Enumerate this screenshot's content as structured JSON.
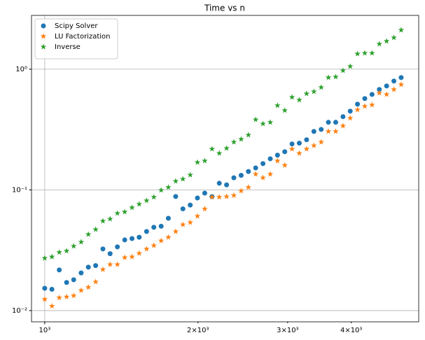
{
  "chart_data": {
    "type": "scatter",
    "title": "Time vs n",
    "log_x": true,
    "log_y": true,
    "grid": true,
    "legend": "upper left",
    "xlim": [
      942,
      5426
    ],
    "ylim": [
      0.00807,
      2.79
    ],
    "xticks": [
      {
        "value": 1000,
        "label": "10³"
      }
    ],
    "xminorticks": [
      {
        "value": 2000,
        "label": "2×10³"
      },
      {
        "value": 3000,
        "label": "3×10³"
      },
      {
        "value": 4000,
        "label": "4×10³"
      }
    ],
    "yticks": [
      {
        "value": 0.01,
        "label": "10⁻²"
      },
      {
        "value": 0.1,
        "label": "10⁻¹"
      },
      {
        "value": 1,
        "label": "10⁰"
      }
    ],
    "x": [
      1000,
      1033,
      1068,
      1104,
      1140,
      1179,
      1218,
      1259,
      1301,
      1344,
      1389,
      1436,
      1484,
      1533,
      1585,
      1638,
      1693,
      1749,
      1808,
      1868,
      1931,
      1995,
      2062,
      2131,
      2202,
      2276,
      2352,
      2431,
      2512,
      2596,
      2683,
      2773,
      2865,
      2961,
      3060,
      3162,
      3268,
      3378,
      3491,
      3607,
      3728,
      3853,
      3981,
      4114,
      4252,
      4394,
      4541,
      4693,
      4850,
      5012
    ],
    "series": [
      {
        "name": "Scipy Solver",
        "color": "#1f77b4",
        "marker": "o",
        "values": [
          0.0153,
          0.015,
          0.0217,
          0.0171,
          0.018,
          0.0205,
          0.0229,
          0.0236,
          0.0324,
          0.0296,
          0.0337,
          0.0385,
          0.0395,
          0.0405,
          0.0452,
          0.049,
          0.05,
          0.0582,
          0.0881,
          0.0696,
          0.0748,
          0.0857,
          0.094,
          0.088,
          0.1135,
          0.11,
          0.126,
          0.132,
          0.142,
          0.152,
          0.165,
          0.181,
          0.194,
          0.207,
          0.24,
          0.244,
          0.26,
          0.305,
          0.317,
          0.363,
          0.363,
          0.404,
          0.449,
          0.513,
          0.571,
          0.618,
          0.679,
          0.726,
          0.797,
          0.852
        ]
      },
      {
        "name": "LU Factorization",
        "color": "#ff7f0e",
        "marker": "*",
        "values": [
          0.0124,
          0.0109,
          0.0128,
          0.013,
          0.0133,
          0.0147,
          0.0156,
          0.0173,
          0.0219,
          0.0241,
          0.0241,
          0.0275,
          0.0279,
          0.0298,
          0.0324,
          0.0346,
          0.0379,
          0.0405,
          0.0452,
          0.0515,
          0.0537,
          0.0606,
          0.0696,
          0.0871,
          0.0871,
          0.088,
          0.09,
          0.0982,
          0.105,
          0.135,
          0.126,
          0.135,
          0.174,
          0.16,
          0.218,
          0.201,
          0.218,
          0.233,
          0.249,
          0.305,
          0.305,
          0.339,
          0.393,
          0.461,
          0.493,
          0.506,
          0.635,
          0.618,
          0.679,
          0.746
        ]
      },
      {
        "name": "Inverse",
        "color": "#2ca02c",
        "marker": "*",
        "values": [
          0.0272,
          0.0279,
          0.0304,
          0.0312,
          0.0342,
          0.037,
          0.0428,
          0.047,
          0.0552,
          0.0574,
          0.064,
          0.0657,
          0.0713,
          0.0762,
          0.0815,
          0.0871,
          0.0994,
          0.105,
          0.118,
          0.123,
          0.133,
          0.169,
          0.174,
          0.218,
          0.201,
          0.221,
          0.249,
          0.263,
          0.285,
          0.382,
          0.353,
          0.363,
          0.5,
          0.455,
          0.586,
          0.556,
          0.627,
          0.652,
          0.707,
          0.852,
          0.864,
          0.974,
          1.055,
          1.341,
          1.359,
          1.359,
          1.617,
          1.706,
          1.824,
          2.11
        ]
      }
    ]
  }
}
